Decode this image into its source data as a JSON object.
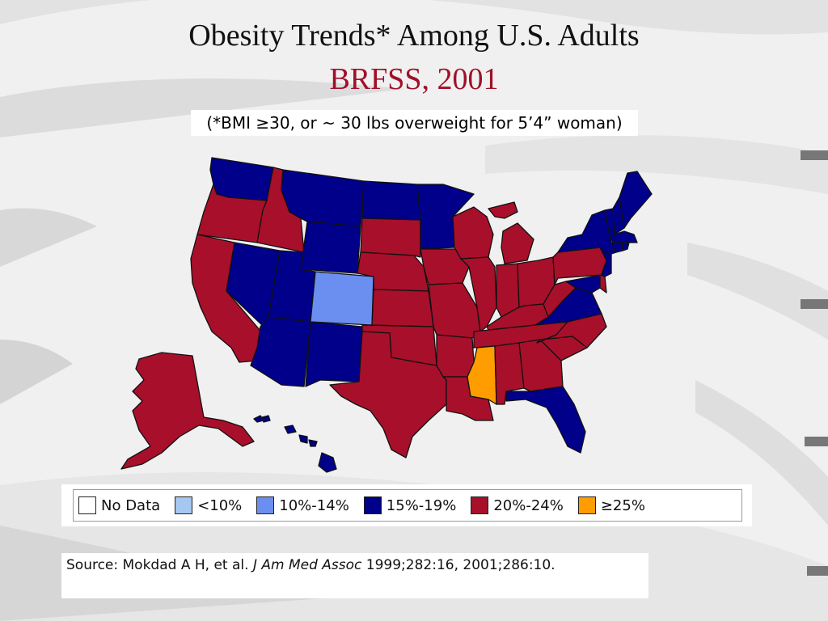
{
  "title": "Obesity Trends* Among U.S. Adults",
  "subtitle": "BRFSS, 2001",
  "footnote": "(*BMI ≥30, or ~ 30 lbs overweight for 5’4” woman)",
  "colors": {
    "no_data": "#ffffff",
    "lt10": "#a6c8f0",
    "r10_14": "#6b8ff0",
    "r15_19": "#00008b",
    "r20_24": "#a80f2b",
    "ge25": "#ff9c00"
  },
  "legend": [
    {
      "label": "No Data",
      "color": "#ffffff"
    },
    {
      "label": "<10%",
      "color": "#a6c8f0"
    },
    {
      "label": "10%-14%",
      "color": "#6b8ff0"
    },
    {
      "label": "15%-19%",
      "color": "#00008b"
    },
    {
      "label": "20%-24%",
      "color": "#a80f2b"
    },
    {
      "label": "≥25%",
      "color": "#ff9c00"
    }
  ],
  "source": {
    "prefix": "Source: Mokdad A H, et al. ",
    "journal": "J Am Med Assoc",
    "suffix": " 1999;282:16, 2001;286:10."
  }
}
